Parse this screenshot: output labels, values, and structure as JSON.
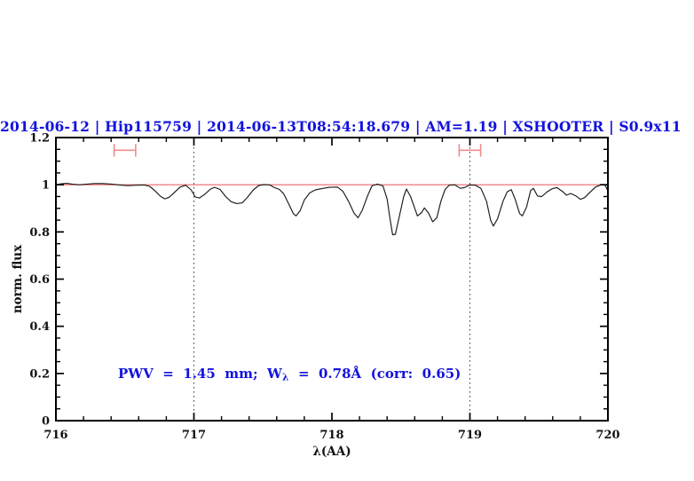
{
  "header": {
    "title": "2014-06-12 | Hip115759 | 2014-06-13T08:54:18.679 | AM=1.19 | XSHOOTER | S0.9x11"
  },
  "annotation": {
    "prefix": "PWV = 1.45 mm; W",
    "sub": "λ",
    "suffix": " = 0.78Å (corr: 0.65)"
  },
  "colors": {
    "accent_blue": "#1212dd",
    "reference_red": "#ee8080",
    "marker_red": "#f18c8c",
    "spectrum_black": "#1a1a1a",
    "dotted_line": "#333333"
  },
  "chart_data": {
    "type": "line",
    "title": "2014-06-12 | Hip115759 | 2014-06-13T08:54:18.679 | AM=1.19 | XSHOOTER | S0.9x11",
    "xlabel": "λ(AA)",
    "ylabel": "norm. flux",
    "xlim": [
      716,
      720
    ],
    "ylim": [
      0,
      1.2
    ],
    "grid": "off",
    "legend": "none",
    "x_major_ticks": [
      716,
      717,
      718,
      719,
      720
    ],
    "x_tick_labels": [
      "716",
      "717",
      "718",
      "719",
      "720"
    ],
    "x_minor_step": 0.2,
    "y_major_ticks": [
      0,
      0.2,
      0.4,
      0.6,
      0.8,
      1,
      1.2
    ],
    "y_tick_labels": [
      "0",
      "0.2",
      "0.4",
      "0.6",
      "0.8",
      "1",
      "1.2"
    ],
    "y_minor_step": 0.05,
    "reference_line_y": 1.0,
    "dotted_vlines_x": [
      717,
      719
    ],
    "band_markers": [
      {
        "x_center": 716.5,
        "x_half_width": 0.078,
        "y": 1.146,
        "cap_half_height": 0.027
      },
      {
        "x_center": 719.0,
        "x_half_width": 0.078,
        "y": 1.146,
        "cap_half_height": 0.027
      }
    ],
    "series": [
      {
        "name": "normalized-telluric-spectrum",
        "color": "#1a1a1a",
        "points": [
          [
            716.0,
            1.0
          ],
          [
            716.04,
            1.004
          ],
          [
            716.08,
            1.006
          ],
          [
            716.12,
            1.002
          ],
          [
            716.17,
            1.0
          ],
          [
            716.22,
            1.002
          ],
          [
            716.28,
            1.005
          ],
          [
            716.34,
            1.005
          ],
          [
            716.4,
            1.003
          ],
          [
            716.46,
            0.999
          ],
          [
            716.52,
            0.996
          ],
          [
            716.58,
            0.998
          ],
          [
            716.64,
            0.999
          ],
          [
            716.68,
            0.993
          ],
          [
            716.72,
            0.973
          ],
          [
            716.76,
            0.95
          ],
          [
            716.79,
            0.94
          ],
          [
            716.82,
            0.947
          ],
          [
            716.86,
            0.968
          ],
          [
            716.9,
            0.99
          ],
          [
            716.94,
            0.998
          ],
          [
            716.98,
            0.978
          ],
          [
            717.01,
            0.948
          ],
          [
            717.04,
            0.944
          ],
          [
            717.08,
            0.96
          ],
          [
            717.12,
            0.982
          ],
          [
            717.15,
            0.989
          ],
          [
            717.19,
            0.98
          ],
          [
            717.23,
            0.95
          ],
          [
            717.27,
            0.928
          ],
          [
            717.31,
            0.92
          ],
          [
            717.35,
            0.923
          ],
          [
            717.39,
            0.948
          ],
          [
            717.43,
            0.978
          ],
          [
            717.47,
            0.997
          ],
          [
            717.51,
            1.001
          ],
          [
            717.55,
            0.999
          ],
          [
            717.58,
            0.989
          ],
          [
            717.62,
            0.98
          ],
          [
            717.65,
            0.962
          ],
          [
            717.69,
            0.915
          ],
          [
            717.72,
            0.878
          ],
          [
            717.74,
            0.868
          ],
          [
            717.77,
            0.89
          ],
          [
            717.8,
            0.935
          ],
          [
            717.84,
            0.966
          ],
          [
            717.88,
            0.978
          ],
          [
            717.93,
            0.984
          ],
          [
            717.98,
            0.989
          ],
          [
            718.04,
            0.99
          ],
          [
            718.08,
            0.972
          ],
          [
            718.12,
            0.93
          ],
          [
            718.16,
            0.88
          ],
          [
            718.19,
            0.86
          ],
          [
            718.22,
            0.892
          ],
          [
            718.26,
            0.955
          ],
          [
            718.29,
            0.995
          ],
          [
            718.33,
            1.003
          ],
          [
            718.37,
            0.995
          ],
          [
            718.4,
            0.94
          ],
          [
            718.42,
            0.86
          ],
          [
            718.44,
            0.788
          ],
          [
            718.46,
            0.79
          ],
          [
            718.49,
            0.87
          ],
          [
            718.52,
            0.95
          ],
          [
            718.54,
            0.982
          ],
          [
            718.57,
            0.95
          ],
          [
            718.6,
            0.9
          ],
          [
            718.62,
            0.868
          ],
          [
            718.65,
            0.882
          ],
          [
            718.67,
            0.902
          ],
          [
            718.7,
            0.88
          ],
          [
            718.73,
            0.843
          ],
          [
            718.76,
            0.86
          ],
          [
            718.79,
            0.93
          ],
          [
            718.82,
            0.98
          ],
          [
            718.85,
            0.998
          ],
          [
            718.89,
            1.0
          ],
          [
            718.93,
            0.985
          ],
          [
            718.96,
            0.988
          ],
          [
            719.0,
            0.999
          ],
          [
            719.04,
            0.998
          ],
          [
            719.08,
            0.985
          ],
          [
            719.12,
            0.93
          ],
          [
            719.15,
            0.85
          ],
          [
            719.17,
            0.825
          ],
          [
            719.2,
            0.855
          ],
          [
            719.24,
            0.93
          ],
          [
            719.27,
            0.97
          ],
          [
            719.3,
            0.979
          ],
          [
            719.33,
            0.935
          ],
          [
            719.36,
            0.878
          ],
          [
            719.38,
            0.868
          ],
          [
            719.41,
            0.905
          ],
          [
            719.44,
            0.975
          ],
          [
            719.46,
            0.985
          ],
          [
            719.49,
            0.952
          ],
          [
            719.52,
            0.95
          ],
          [
            719.56,
            0.97
          ],
          [
            719.6,
            0.984
          ],
          [
            719.63,
            0.988
          ],
          [
            719.67,
            0.972
          ],
          [
            719.7,
            0.956
          ],
          [
            719.73,
            0.963
          ],
          [
            719.77,
            0.952
          ],
          [
            719.8,
            0.938
          ],
          [
            719.83,
            0.945
          ],
          [
            719.87,
            0.968
          ],
          [
            719.91,
            0.99
          ],
          [
            719.95,
            1.0
          ],
          [
            719.98,
            0.998
          ],
          [
            720.0,
            0.973
          ]
        ]
      }
    ]
  }
}
